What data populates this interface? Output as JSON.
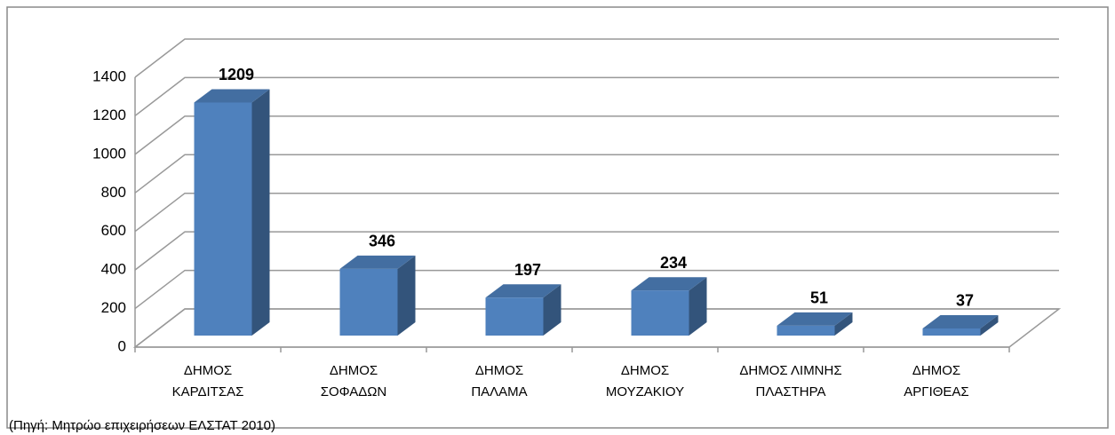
{
  "chart_data": {
    "type": "bar3d",
    "categories": [
      [
        "ΔΗΜΟΣ",
        "ΚΑΡΔΙΤΣΑΣ"
      ],
      [
        "ΔΗΜΟΣ",
        "ΣΟΦΑΔΩΝ"
      ],
      [
        "ΔΗΜΟΣ",
        "ΠΑΛΑΜΑ"
      ],
      [
        "ΔΗΜΟΣ",
        "ΜΟΥΖΑΚΙΟΥ"
      ],
      [
        "ΔΗΜΟΣ ΛΙΜΝΗΣ",
        "ΠΛΑΣΤΗΡΑ"
      ],
      [
        "ΔΗΜΟΣ",
        "ΑΡΓΙΘΕΑΣ"
      ]
    ],
    "values": [
      1209,
      346,
      197,
      234,
      51,
      37
    ],
    "color": "#4f81bd",
    "ylim": [
      0,
      1400
    ],
    "yticks": [
      0,
      200,
      400,
      600,
      800,
      1000,
      1200,
      1400
    ],
    "grid": true,
    "source": "(Πηγή: Μητρώο επιχειρήσεων ΕΛΣΤΑΤ 2010)"
  }
}
